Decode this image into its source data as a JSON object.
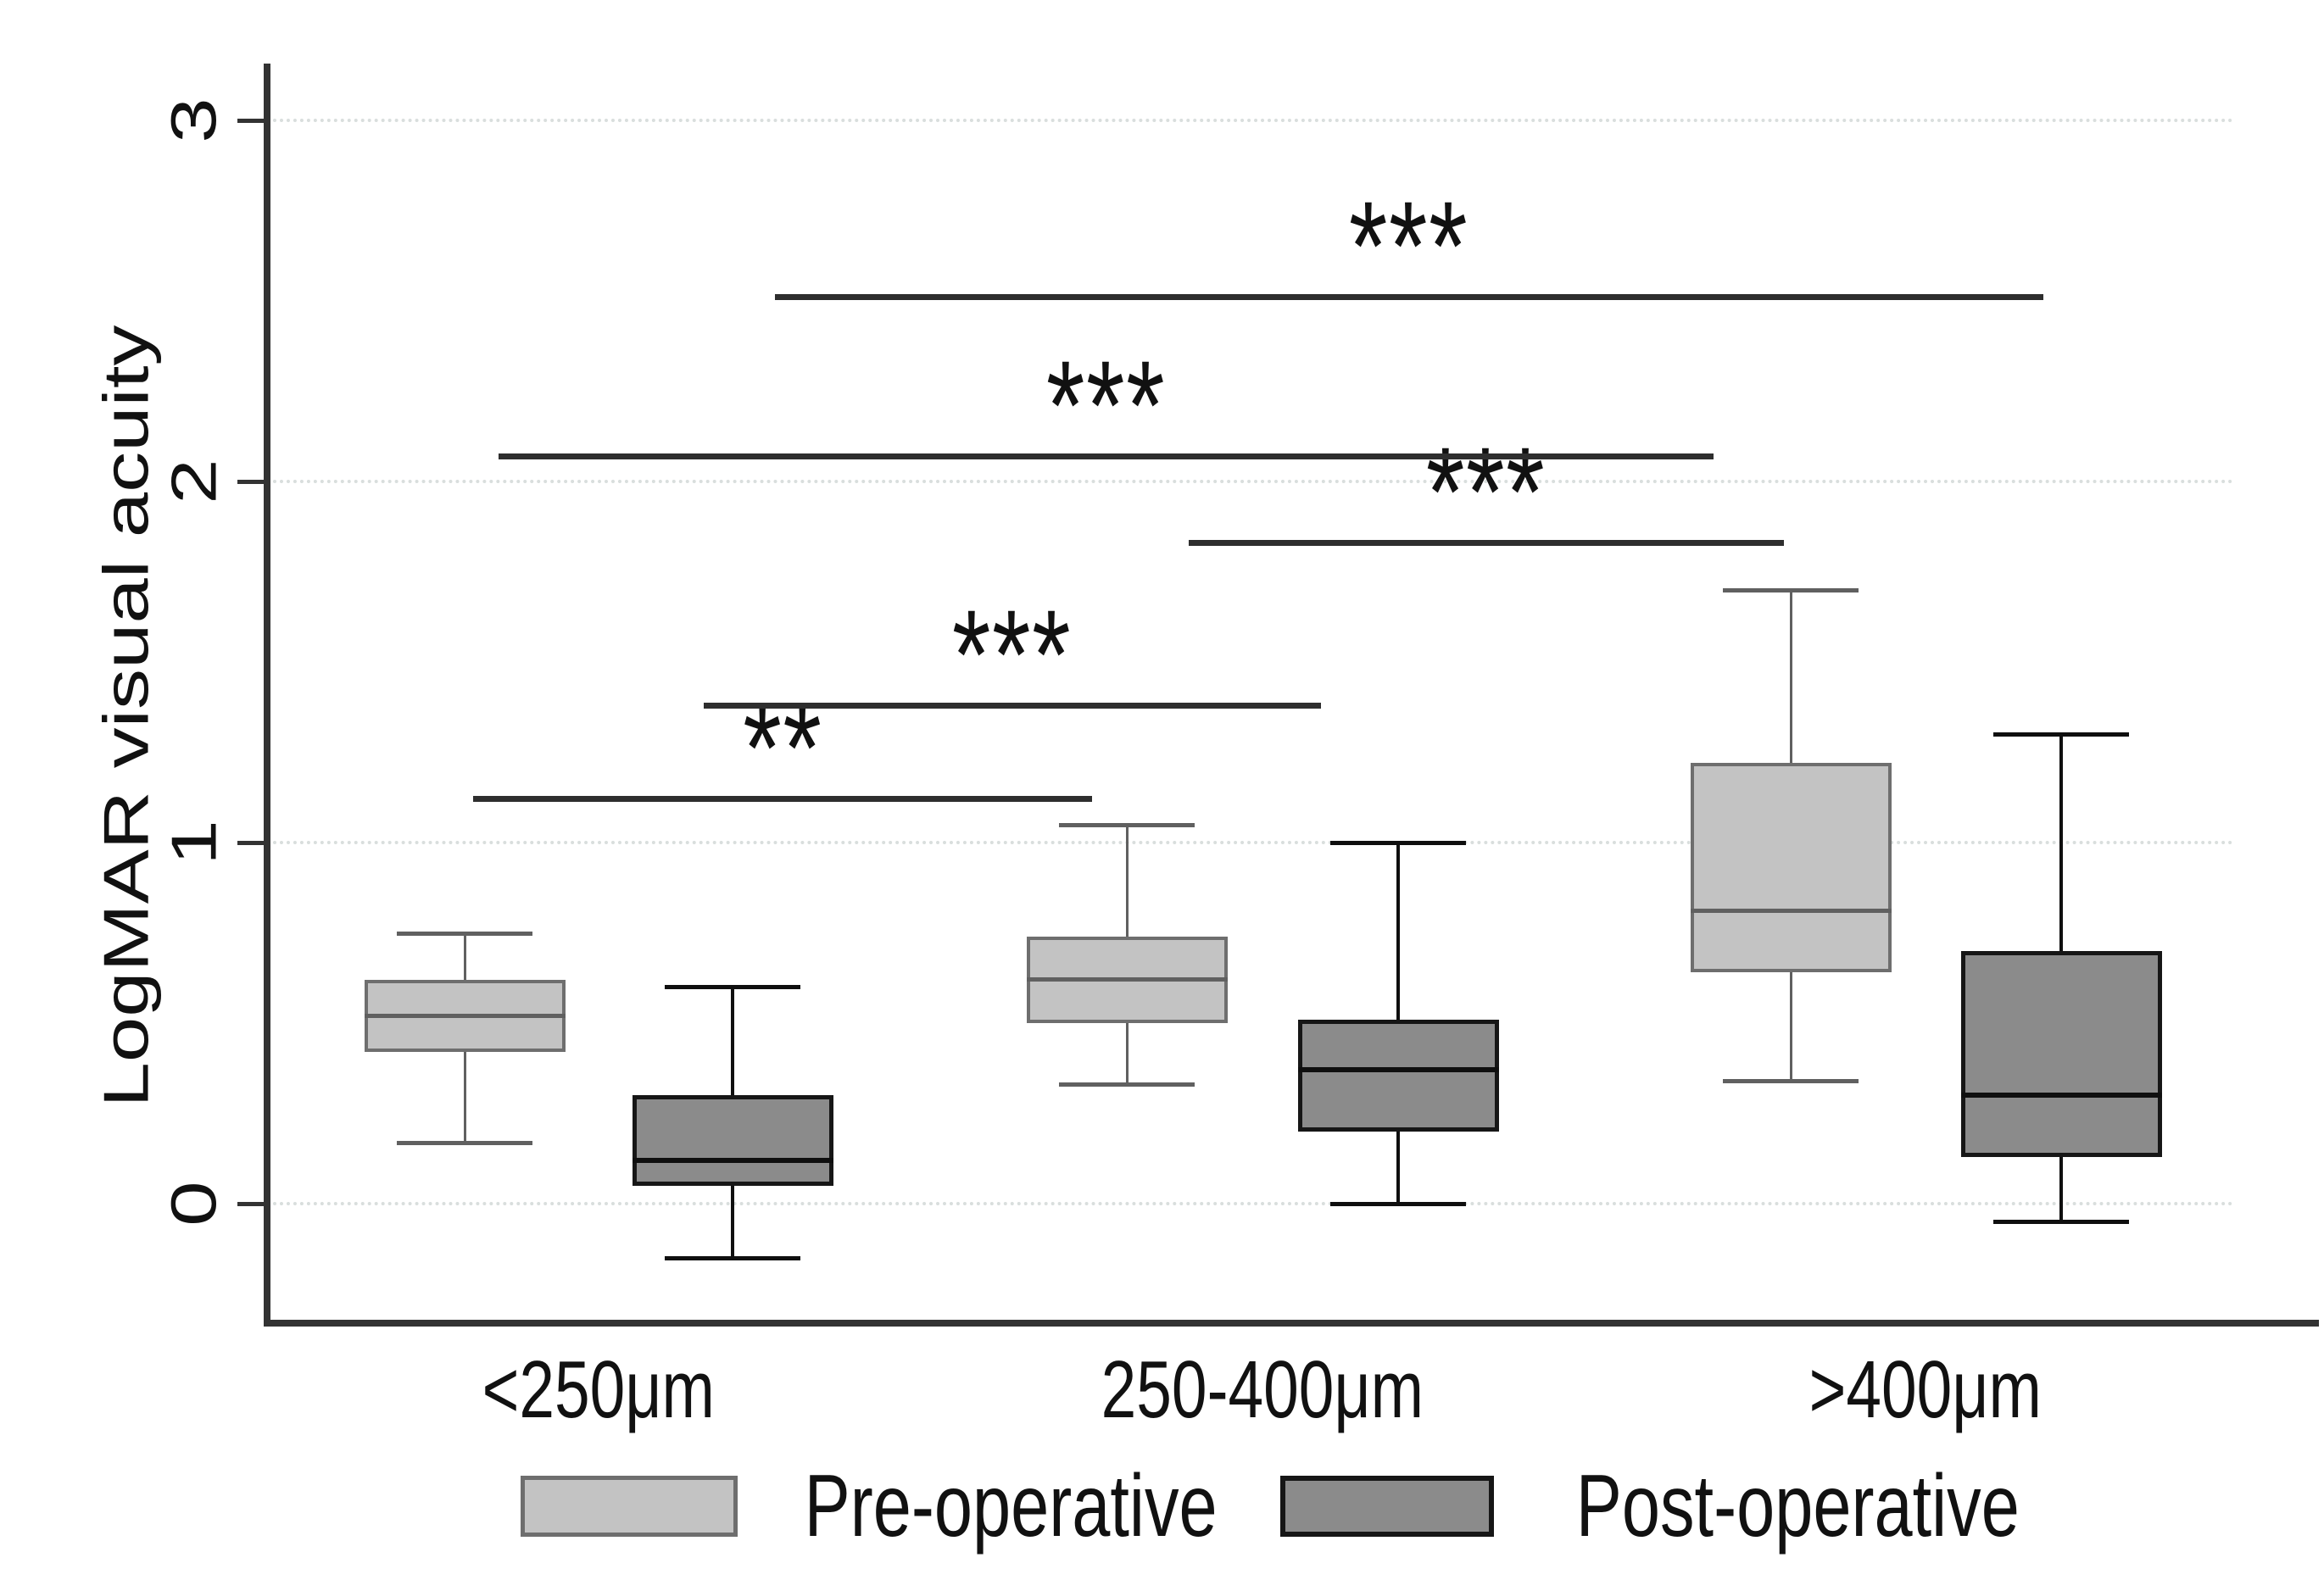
{
  "figure": {
    "background_color": "#ffffff",
    "kind": "grouped box plot with significance brackets"
  },
  "y_axis": {
    "title": "LogMAR visual acuity",
    "tick_labels": [
      "3",
      "2",
      "1",
      "0"
    ],
    "tick_values": [
      3,
      2,
      1,
      0
    ],
    "label_rotation": "vertical"
  },
  "x_axis": {
    "categories": [
      "<250μm",
      "250-400μm",
      ">400μm"
    ]
  },
  "legend": {
    "position": "bottom",
    "items": [
      {
        "label": "Pre-operative",
        "fill": "#c3c3c3",
        "stroke": "#6e6e6e"
      },
      {
        "label": "Post-operative",
        "fill": "#8b8b8b",
        "stroke": "#161616"
      }
    ]
  },
  "chart_data": {
    "type": "boxplot",
    "title": "",
    "xlabel": "",
    "ylabel": "LogMAR visual acuity",
    "categories": [
      "<250μm",
      "250-400μm",
      ">400μm"
    ],
    "ylim": [
      -0.35,
      3.15
    ],
    "yticks": [
      0,
      1,
      2,
      3
    ],
    "grid": true,
    "legend_position": "bottom",
    "series": [
      {
        "name": "Pre-operative",
        "fill": "#c3c3c3",
        "stroke": "#6e6e6e",
        "boxes": [
          {
            "category": "<250μm",
            "whisker_low": 0.17,
            "q1": 0.42,
            "median": 0.52,
            "q3": 0.62,
            "whisker_high": 0.75
          },
          {
            "category": "250-400μm",
            "whisker_low": 0.33,
            "q1": 0.5,
            "median": 0.62,
            "q3": 0.74,
            "whisker_high": 1.05
          },
          {
            "category": ">400μm",
            "whisker_low": 0.34,
            "q1": 0.64,
            "median": 0.81,
            "q3": 1.22,
            "whisker_high": 1.7
          }
        ]
      },
      {
        "name": "Post-operative",
        "fill": "#8b8b8b",
        "stroke": "#161616",
        "boxes": [
          {
            "category": "<250μm",
            "whisker_low": -0.15,
            "q1": 0.05,
            "median": 0.12,
            "q3": 0.3,
            "whisker_high": 0.6
          },
          {
            "category": "250-400μm",
            "whisker_low": 0.0,
            "q1": 0.2,
            "median": 0.37,
            "q3": 0.51,
            "whisker_high": 1.0
          },
          {
            "category": ">400μm",
            "whisker_low": -0.05,
            "q1": 0.13,
            "median": 0.3,
            "q3": 0.7,
            "whisker_high": 1.3
          }
        ]
      }
    ],
    "significance_bars": [
      {
        "stars": "**",
        "y_logmar": 1.12,
        "from": "<250μm Pre-operative",
        "to": "250-400μm Pre-operative"
      },
      {
        "stars": "***",
        "y_logmar": 1.38,
        "from": "<250μm Post-operative",
        "to": "250-400μm Post-operative"
      },
      {
        "stars": "***",
        "y_logmar": 1.83,
        "from": "250-400μm Pre-operative",
        "to": ">400μm Pre-operative"
      },
      {
        "stars": "***",
        "y_logmar": 2.07,
        "from": "<250μm Pre-operative",
        "to": ">400μm Pre-operative"
      },
      {
        "stars": "***",
        "y_logmar": 2.51,
        "from": "<250μm Post-operative",
        "to": ">400μm Post-operative"
      }
    ]
  }
}
